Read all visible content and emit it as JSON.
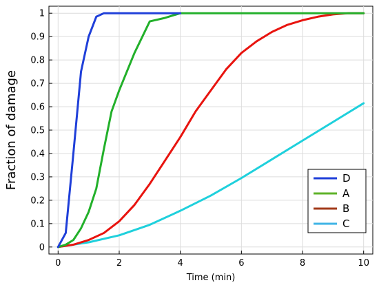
{
  "chart_data": {
    "type": "line",
    "xlabel": "Time (min)",
    "ylabel": "Fraction of damage",
    "xlim": [
      -0.3,
      10.3
    ],
    "ylim": [
      -0.03,
      1.03
    ],
    "xticks": [
      "0",
      "2",
      "4",
      "6",
      "8",
      "10"
    ],
    "yticks": [
      "0",
      "0.1",
      "0.2",
      "0.3",
      "0.4",
      "0.5",
      "0.6",
      "0.7",
      "0.8",
      "0.9",
      "1"
    ],
    "grid": true,
    "legend_position": "bottom-right",
    "series": [
      {
        "name": "D",
        "color": "#1f3fd9",
        "points": [
          [
            0,
            0
          ],
          [
            0.25,
            0.06
          ],
          [
            0.5,
            0.4
          ],
          [
            0.75,
            0.75
          ],
          [
            1.0,
            0.9
          ],
          [
            1.25,
            0.985
          ],
          [
            1.5,
            1.0
          ],
          [
            2,
            1.0
          ],
          [
            3,
            1.0
          ],
          [
            4,
            1.0
          ]
        ]
      },
      {
        "name": "A",
        "color": "#22b02a",
        "points": [
          [
            0,
            0
          ],
          [
            0.25,
            0.01
          ],
          [
            0.5,
            0.03
          ],
          [
            0.75,
            0.08
          ],
          [
            1.0,
            0.15
          ],
          [
            1.25,
            0.25
          ],
          [
            1.5,
            0.42
          ],
          [
            1.75,
            0.58
          ],
          [
            2.0,
            0.67
          ],
          [
            2.5,
            0.83
          ],
          [
            3.0,
            0.965
          ],
          [
            3.5,
            0.98
          ],
          [
            4.0,
            1.0
          ],
          [
            5,
            1.0
          ],
          [
            7,
            1.0
          ],
          [
            10,
            1.0
          ]
        ]
      },
      {
        "name": "B",
        "color": "#e8140f",
        "points": [
          [
            0,
            0
          ],
          [
            0.5,
            0.01
          ],
          [
            1.0,
            0.03
          ],
          [
            1.5,
            0.06
          ],
          [
            2.0,
            0.11
          ],
          [
            2.5,
            0.18
          ],
          [
            3.0,
            0.27
          ],
          [
            3.5,
            0.37
          ],
          [
            4.0,
            0.47
          ],
          [
            4.5,
            0.58
          ],
          [
            5.0,
            0.67
          ],
          [
            5.5,
            0.76
          ],
          [
            6.0,
            0.83
          ],
          [
            6.5,
            0.88
          ],
          [
            7.0,
            0.92
          ],
          [
            7.5,
            0.95
          ],
          [
            8.0,
            0.97
          ],
          [
            8.5,
            0.985
          ],
          [
            9.0,
            0.995
          ],
          [
            9.5,
            1.0
          ],
          [
            10,
            1.0
          ]
        ]
      },
      {
        "name": "C",
        "color": "#1fd0dc",
        "points": [
          [
            0,
            0
          ],
          [
            1,
            0.02
          ],
          [
            2,
            0.05
          ],
          [
            3,
            0.095
          ],
          [
            4,
            0.155
          ],
          [
            5,
            0.22
          ],
          [
            6,
            0.295
          ],
          [
            7,
            0.375
          ],
          [
            8,
            0.455
          ],
          [
            9,
            0.535
          ],
          [
            10,
            0.615
          ]
        ]
      }
    ],
    "legend": [
      {
        "label": "D",
        "color": "#1f3fd9"
      },
      {
        "label": "A",
        "color": "#5fb32a"
      },
      {
        "label": "B",
        "color": "#a23a1a"
      },
      {
        "label": "C",
        "color": "#3fb4e6"
      }
    ]
  }
}
